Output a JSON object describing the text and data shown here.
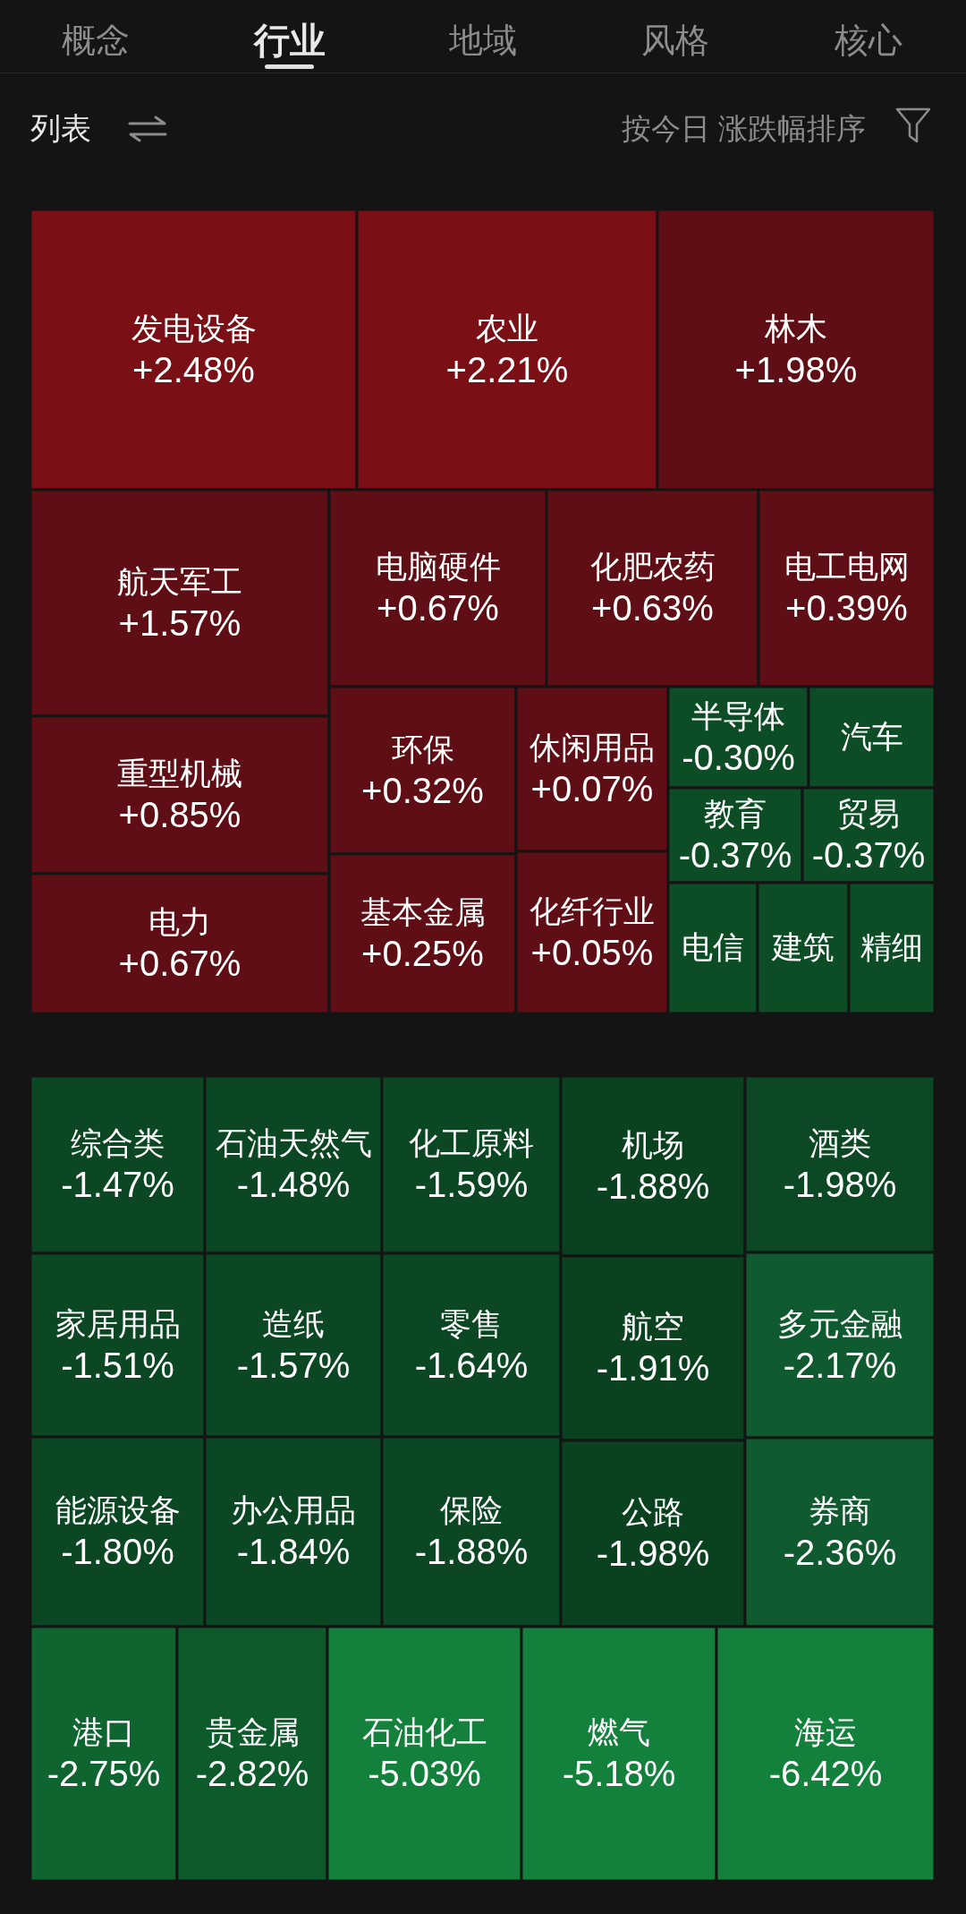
{
  "chart_data": {
    "type": "other",
    "categories": [
      "发电设备",
      "农业",
      "林木",
      "航天军工",
      "重型机械",
      "电力",
      "电脑硬件",
      "化肥农药",
      "电工电网",
      "环保",
      "基本金属",
      "休闲用品",
      "化纤行业",
      "半导体",
      "汽车",
      "教育",
      "贸易",
      "电信",
      "建筑",
      "精细",
      "综合类",
      "石油天然气",
      "化工原料",
      "机场",
      "酒类",
      "家居用品",
      "造纸",
      "零售",
      "航空",
      "多元金融",
      "能源设备",
      "办公用品",
      "保险",
      "公路",
      "券商",
      "港口",
      "贵金属",
      "石油化工",
      "燃气",
      "海运"
    ],
    "values": [
      2.48,
      2.21,
      1.98,
      1.57,
      0.85,
      0.67,
      0.67,
      0.63,
      0.39,
      0.32,
      0.25,
      0.07,
      0.05,
      -0.3,
      null,
      -0.37,
      -0.37,
      null,
      null,
      null,
      -1.47,
      -1.48,
      -1.59,
      -1.88,
      -1.98,
      -1.51,
      -1.57,
      -1.64,
      -1.91,
      -2.17,
      -1.8,
      -1.84,
      -1.88,
      -1.98,
      -2.36,
      -2.75,
      -2.82,
      -5.03,
      -5.18,
      -6.42
    ],
    "value_labels": [
      "+2.48%",
      "+2.21%",
      "+1.98%",
      "+1.57%",
      "+0.85%",
      "+0.67%",
      "+0.67%",
      "+0.63%",
      "+0.39%",
      "+0.32%",
      "+0.25%",
      "+0.07%",
      "+0.05%",
      "-0.30%",
      null,
      "-0.37%",
      "-0.37%",
      null,
      null,
      null,
      "-1.47%",
      "-1.48%",
      "-1.59%",
      "-1.88%",
      "-1.98%",
      "-1.51%",
      "-1.57%",
      "-1.64%",
      "-1.91%",
      "-2.17%",
      "-1.80%",
      "-1.84%",
      "-1.88%",
      "-1.98%",
      "-2.36%",
      "-2.75%",
      "-2.82%",
      "-5.03%",
      "-5.18%",
      "-6.42%"
    ],
    "colors": [
      "#7a1016",
      "#7a1016",
      "#5e0e14",
      "#5e0e14",
      "#5e0e14",
      "#5e0e14",
      "#5e0e14",
      "#5e0e14",
      "#5e0e14",
      "#5e0e14",
      "#5e0e14",
      "#5e0e14",
      "#5e0e14",
      "#0d4d26",
      "#0d4d26",
      "#0d4d26",
      "#0d4d26",
      "#0d4d26",
      "#0d4d26",
      "#0d4d26",
      "#0c4724",
      "#0c4724",
      "#0c4724",
      "#0a4220",
      "#0c4824",
      "#0c4724",
      "#0c4724",
      "#0c4724",
      "#0a4220",
      "#0f5a2e",
      "#0c4724",
      "#0c4724",
      "#0c4724",
      "#0a4220",
      "#0f5a2e",
      "#0f6530",
      "#0d5a2b",
      "#13803b",
      "#13803b",
      "#13813b"
    ],
    "annotations": [
      "概念",
      "行业",
      "地域",
      "风格",
      "核心",
      "列表",
      "按今日 涨跌幅排序"
    ]
  }
}
